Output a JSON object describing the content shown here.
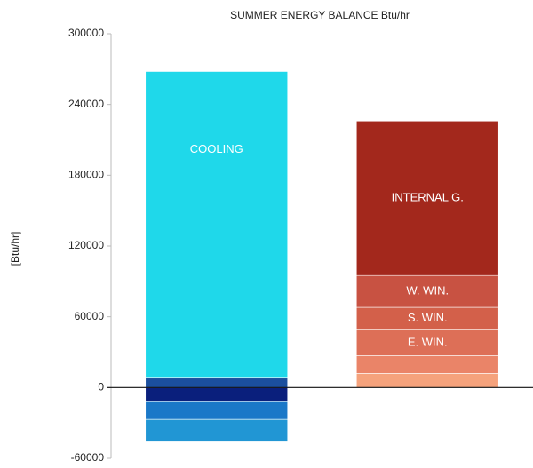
{
  "chart_data": {
    "type": "stacked-bar",
    "title": "SUMMER ENERGY BALANCE Btu/hr",
    "y_label": "[Btu/hr]",
    "ylim": [
      -60000,
      300000
    ],
    "yticks": [
      -60000,
      0,
      60000,
      120000,
      180000,
      240000,
      300000
    ],
    "series": [
      {
        "color": "#1b4f9e",
        "values": [
          8000,
          null
        ]
      },
      {
        "name": "COOLING",
        "color": "#1fd8ea",
        "values": [
          260000,
          null
        ]
      },
      {
        "color": "#0a1f7c",
        "values": [
          -12000,
          null
        ]
      },
      {
        "color": "#1a78c8",
        "values": [
          -15000,
          null
        ]
      },
      {
        "color": "#2196d4",
        "values": [
          -19000,
          null
        ]
      },
      {
        "color": "#f5a27c",
        "values": [
          null,
          12000
        ]
      },
      {
        "color": "#ea8468",
        "values": [
          null,
          15000
        ]
      },
      {
        "name": "E. WIN.",
        "color": "#dd6f57",
        "values": [
          null,
          22000
        ]
      },
      {
        "name": "S. WIN.",
        "color": "#d3604a",
        "values": [
          null,
          19000
        ]
      },
      {
        "name": "W. WIN.",
        "color": "#c85242",
        "values": [
          null,
          27000
        ]
      },
      {
        "name": "INTERNAL G.",
        "color": "#a3281c",
        "values": [
          null,
          131000
        ]
      }
    ]
  }
}
